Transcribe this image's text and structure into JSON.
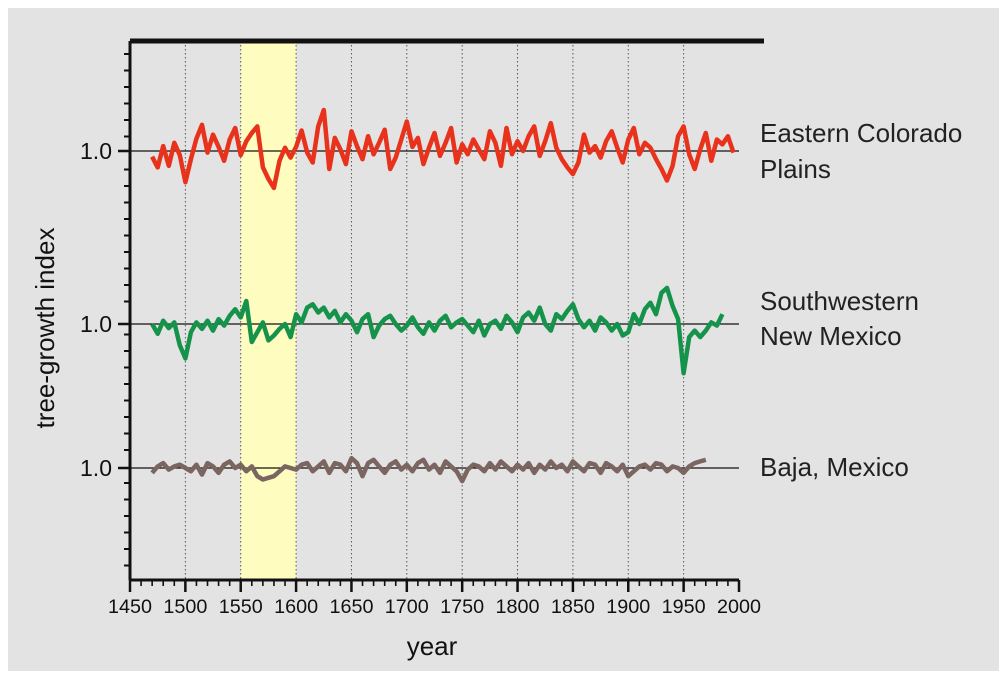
{
  "chart_data": {
    "type": "line",
    "title": "",
    "xlabel": "year",
    "ylabel": "tree-growth index",
    "xlim": [
      1450,
      2000
    ],
    "x_ticks": [
      1450,
      1500,
      1550,
      1600,
      1650,
      1700,
      1750,
      1800,
      1850,
      1900,
      1950,
      2000
    ],
    "x_tick_labels": [
      "1450",
      "1500",
      "1550",
      "1600",
      "1650",
      "1700",
      "1750",
      "1800",
      "1850",
      "1900",
      "1950",
      "2000"
    ],
    "y_tick_labels": [
      "1.0",
      "1.0",
      "1.0"
    ],
    "grid": "vertical dotted lines every 50 years",
    "highlight_band": {
      "from": 1550,
      "to": 1600,
      "color": "#fffcc0"
    },
    "series": [
      {
        "name": "Eastern Colorado Plains",
        "label_lines": [
          "Eastern Colorado",
          "Plains"
        ],
        "color": "#e8321c",
        "baseline": 1.0,
        "x": [
          1470,
          1475,
          1480,
          1485,
          1490,
          1495,
          1500,
          1505,
          1510,
          1515,
          1520,
          1525,
          1530,
          1535,
          1540,
          1545,
          1550,
          1555,
          1560,
          1565,
          1570,
          1575,
          1580,
          1585,
          1590,
          1595,
          1600,
          1605,
          1610,
          1615,
          1620,
          1625,
          1630,
          1635,
          1640,
          1645,
          1650,
          1655,
          1660,
          1665,
          1670,
          1675,
          1680,
          1685,
          1690,
          1695,
          1700,
          1705,
          1710,
          1715,
          1720,
          1725,
          1730,
          1735,
          1740,
          1745,
          1750,
          1755,
          1760,
          1765,
          1770,
          1775,
          1780,
          1785,
          1790,
          1795,
          1800,
          1805,
          1810,
          1815,
          1820,
          1825,
          1830,
          1835,
          1840,
          1845,
          1850,
          1855,
          1860,
          1865,
          1870,
          1875,
          1880,
          1885,
          1890,
          1895,
          1900,
          1905,
          1910,
          1915,
          1920,
          1925,
          1930,
          1935,
          1940,
          1945,
          1950,
          1955,
          1960,
          1965,
          1970,
          1975,
          1980,
          1985,
          1990,
          1995
        ],
        "values": [
          0.93,
          0.8,
          1.06,
          0.82,
          1.1,
          0.95,
          0.62,
          0.9,
          1.15,
          1.32,
          0.98,
          1.2,
          1.05,
          0.88,
          1.14,
          1.28,
          0.95,
          1.12,
          1.22,
          1.3,
          0.8,
          0.66,
          0.55,
          0.88,
          1.04,
          0.92,
          1.05,
          1.25,
          0.98,
          0.86,
          1.3,
          1.5,
          0.78,
          1.16,
          1.02,
          0.84,
          1.24,
          1.06,
          0.9,
          1.18,
          0.96,
          1.1,
          1.26,
          0.78,
          0.92,
          1.14,
          1.36,
          1.05,
          1.16,
          0.84,
          1.04,
          1.22,
          0.94,
          1.1,
          1.28,
          0.86,
          1.08,
          0.96,
          1.14,
          1.02,
          0.9,
          1.24,
          1.1,
          0.82,
          1.28,
          0.96,
          1.12,
          1.0,
          1.18,
          1.3,
          0.94,
          1.12,
          1.34,
          1.04,
          0.9,
          0.8,
          0.72,
          0.86,
          1.2,
          0.98,
          1.06,
          0.92,
          1.12,
          1.24,
          1.04,
          0.86,
          1.14,
          1.28,
          0.96,
          1.1,
          1.04,
          0.9,
          0.78,
          0.64,
          0.82,
          1.18,
          1.3,
          0.96,
          0.78,
          1.02,
          1.22,
          0.88,
          1.14,
          1.08,
          1.18,
          0.98
        ]
      },
      {
        "name": "Southwestern New Mexico",
        "label_lines": [
          "Southwestern",
          "New Mexico"
        ],
        "color": "#16934a",
        "baseline": 1.0,
        "x": [
          1470,
          1475,
          1480,
          1485,
          1490,
          1495,
          1500,
          1505,
          1510,
          1515,
          1520,
          1525,
          1530,
          1535,
          1540,
          1545,
          1550,
          1555,
          1560,
          1565,
          1570,
          1575,
          1580,
          1585,
          1590,
          1595,
          1600,
          1605,
          1610,
          1615,
          1620,
          1625,
          1630,
          1635,
          1640,
          1645,
          1650,
          1655,
          1660,
          1665,
          1670,
          1675,
          1680,
          1685,
          1690,
          1695,
          1700,
          1705,
          1710,
          1715,
          1720,
          1725,
          1730,
          1735,
          1740,
          1745,
          1750,
          1755,
          1760,
          1765,
          1770,
          1775,
          1780,
          1785,
          1790,
          1795,
          1800,
          1805,
          1810,
          1815,
          1820,
          1825,
          1830,
          1835,
          1840,
          1845,
          1850,
          1855,
          1860,
          1865,
          1870,
          1875,
          1880,
          1885,
          1890,
          1895,
          1900,
          1905,
          1910,
          1915,
          1920,
          1925,
          1930,
          1935,
          1940,
          1945,
          1950,
          1955,
          1960,
          1965,
          1970,
          1975,
          1980,
          1985
        ],
        "values": [
          1.0,
          0.88,
          1.04,
          0.95,
          1.02,
          0.74,
          0.58,
          0.9,
          1.02,
          0.94,
          1.04,
          0.92,
          1.06,
          0.98,
          1.1,
          1.18,
          1.08,
          1.28,
          0.78,
          0.9,
          1.02,
          0.8,
          0.86,
          0.94,
          1.0,
          0.84,
          1.12,
          1.02,
          1.2,
          1.24,
          1.14,
          1.2,
          1.08,
          1.16,
          1.02,
          1.12,
          1.04,
          0.9,
          1.06,
          1.12,
          0.84,
          0.98,
          1.06,
          1.1,
          1.0,
          0.92,
          0.98,
          1.08,
          0.96,
          0.88,
          1.02,
          0.92,
          1.04,
          1.1,
          0.96,
          1.02,
          1.06,
          0.98,
          0.9,
          1.04,
          0.86,
          1.0,
          1.04,
          0.94,
          1.1,
          1.02,
          0.9,
          1.08,
          1.14,
          1.04,
          1.2,
          1.0,
          0.92,
          1.12,
          1.06,
          1.16,
          1.24,
          1.06,
          0.96,
          1.04,
          0.92,
          1.08,
          1.02,
          0.92,
          1.0,
          0.86,
          0.9,
          1.12,
          1.0,
          1.18,
          1.26,
          1.12,
          1.38,
          1.44,
          1.22,
          1.06,
          0.4,
          0.84,
          0.92,
          0.84,
          0.92,
          1.02,
          0.98,
          1.12
        ]
      },
      {
        "name": "Baja, Mexico",
        "label_lines": [
          "Baja, Mexico"
        ],
        "color": "#7b6560",
        "baseline": 1.0,
        "x": [
          1470,
          1475,
          1480,
          1485,
          1490,
          1495,
          1500,
          1505,
          1510,
          1515,
          1520,
          1525,
          1530,
          1535,
          1540,
          1545,
          1550,
          1555,
          1560,
          1565,
          1570,
          1575,
          1580,
          1585,
          1590,
          1595,
          1600,
          1605,
          1610,
          1615,
          1620,
          1625,
          1630,
          1635,
          1640,
          1645,
          1650,
          1655,
          1660,
          1665,
          1670,
          1675,
          1680,
          1685,
          1690,
          1695,
          1700,
          1705,
          1710,
          1715,
          1720,
          1725,
          1730,
          1735,
          1740,
          1745,
          1750,
          1755,
          1760,
          1765,
          1770,
          1775,
          1780,
          1785,
          1790,
          1795,
          1800,
          1805,
          1810,
          1815,
          1820,
          1825,
          1830,
          1835,
          1840,
          1845,
          1850,
          1855,
          1860,
          1865,
          1870,
          1875,
          1880,
          1885,
          1890,
          1895,
          1900,
          1905,
          1910,
          1915,
          1920,
          1925,
          1930,
          1935,
          1940,
          1945,
          1950,
          1955,
          1960,
          1965,
          1970
        ],
        "values": [
          0.94,
          1.02,
          1.06,
          0.98,
          1.02,
          1.04,
          1.0,
          0.96,
          1.04,
          0.92,
          1.06,
          1.02,
          0.94,
          1.04,
          1.08,
          1.0,
          1.04,
          0.96,
          1.02,
          0.9,
          0.86,
          0.88,
          0.9,
          0.96,
          1.02,
          1.0,
          0.98,
          1.04,
          1.06,
          0.96,
          1.02,
          1.08,
          0.94,
          1.06,
          1.04,
          0.96,
          1.12,
          1.06,
          0.9,
          1.06,
          1.1,
          1.02,
          0.94,
          1.04,
          1.08,
          0.98,
          1.04,
          0.96,
          1.06,
          1.1,
          0.98,
          1.04,
          0.94,
          1.08,
          1.02,
          0.96,
          0.84,
          0.98,
          1.04,
          1.02,
          0.96,
          1.06,
          0.98,
          1.08,
          1.02,
          0.96,
          1.04,
          0.98,
          1.06,
          0.94,
          1.04,
          0.98,
          1.08,
          1.0,
          1.04,
          0.96,
          1.08,
          1.02,
          0.96,
          1.06,
          1.04,
          0.94,
          1.06,
          1.02,
          0.96,
          1.04,
          0.9,
          0.96,
          1.02,
          1.04,
          0.98,
          1.06,
          1.04,
          0.96,
          1.02,
          1.0,
          0.94,
          1.02,
          1.06,
          1.08,
          1.1
        ]
      }
    ]
  }
}
